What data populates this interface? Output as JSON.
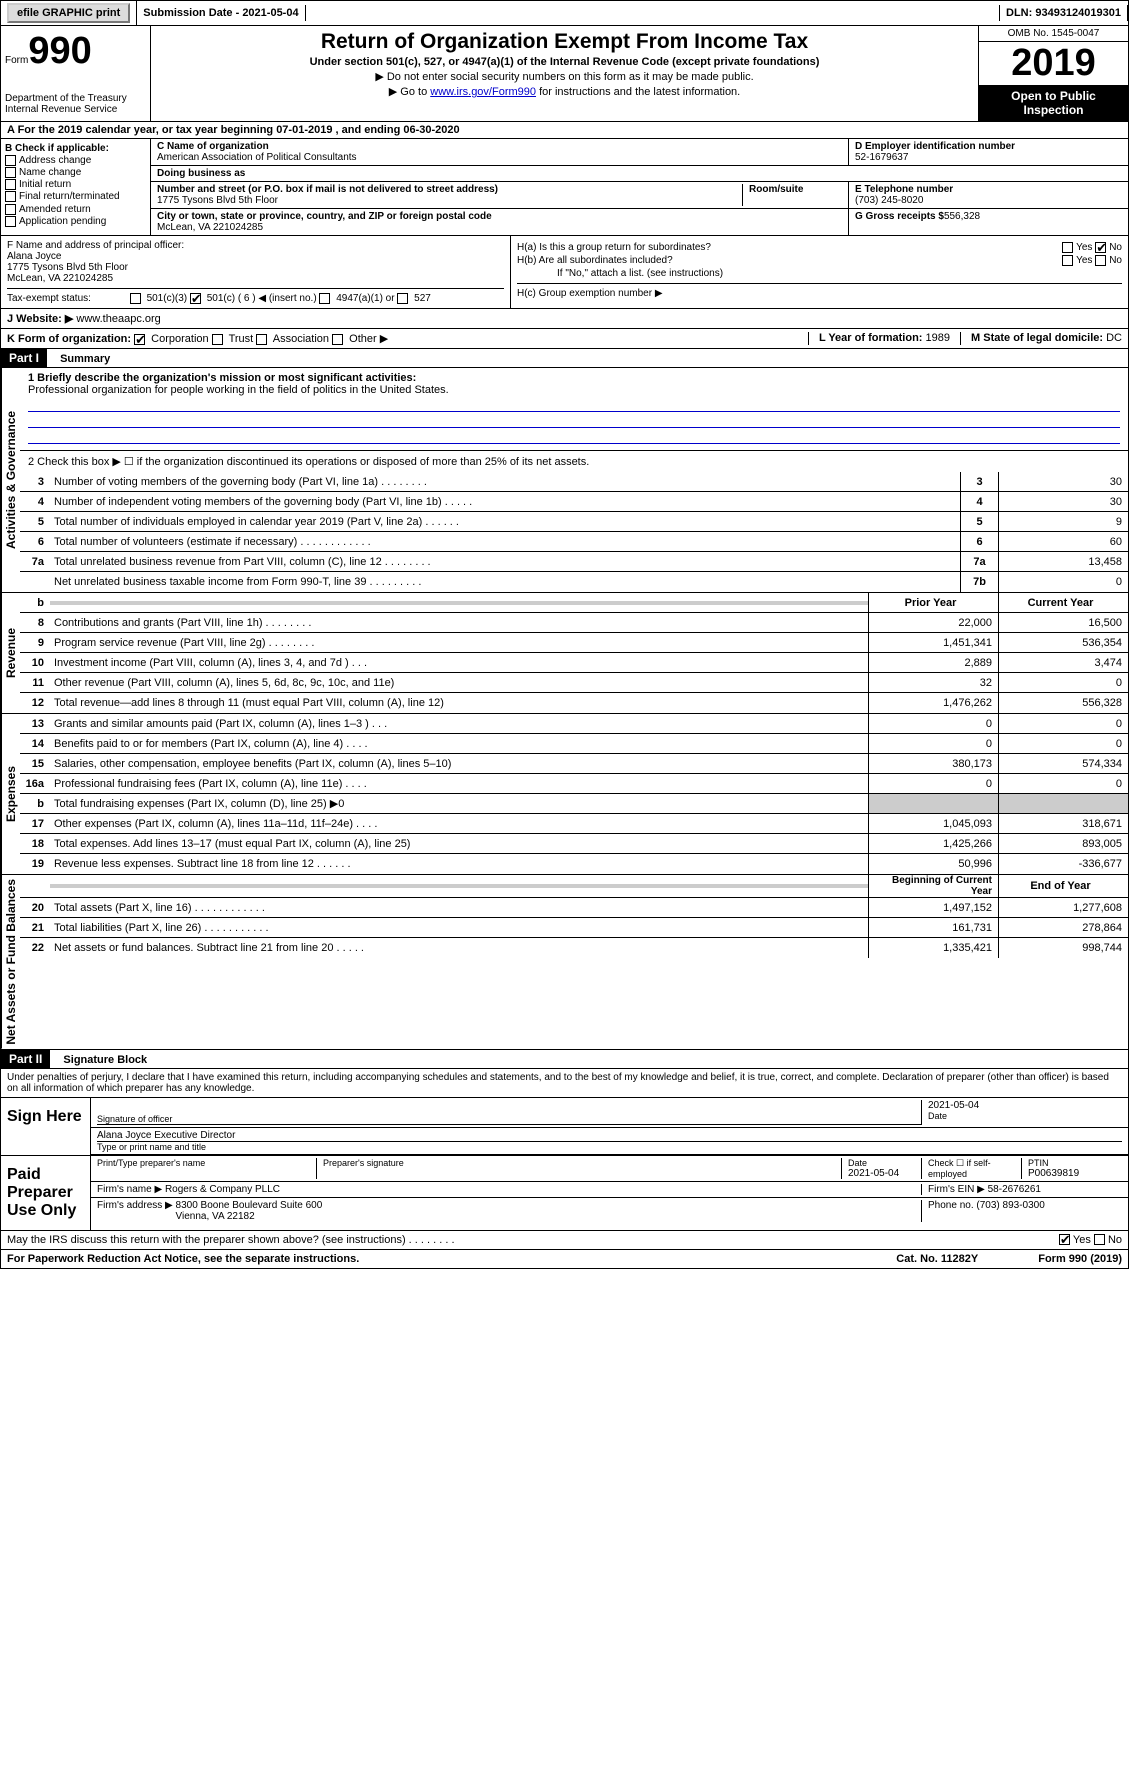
{
  "topbar": {
    "efile": "efile GRAPHIC print",
    "submission": "Submission Date - 2021-05-04",
    "dln": "DLN: 93493124019301"
  },
  "header": {
    "form_label": "Form",
    "form_num": "990",
    "dept": "Department of the Treasury\nInternal Revenue Service",
    "title": "Return of Organization Exempt From Income Tax",
    "subtitle": "Under section 501(c), 527, or 4947(a)(1) of the Internal Revenue Code (except private foundations)",
    "instr1": "▶ Do not enter social security numbers on this form as it may be made public.",
    "instr2_pre": "▶ Go to ",
    "instr2_link": "www.irs.gov/Form990",
    "instr2_post": " for instructions and the latest information.",
    "omb": "OMB No. 1545-0047",
    "year": "2019",
    "inspection": "Open to Public Inspection"
  },
  "row_a": "A For the 2019 calendar year, or tax year beginning 07-01-2019    , and ending 06-30-2020",
  "col_b": {
    "label": "B Check if applicable:",
    "items": [
      "Address change",
      "Name change",
      "Initial return",
      "Final return/terminated",
      "Amended return",
      "Application pending"
    ]
  },
  "col_c": {
    "name_label": "C Name of organization",
    "name": "American Association of Political Consultants",
    "dba_label": "Doing business as",
    "addr_label": "Number and street (or P.O. box if mail is not delivered to street address)",
    "room_label": "Room/suite",
    "addr": "1775 Tysons Blvd 5th Floor",
    "city_label": "City or town, state or province, country, and ZIP or foreign postal code",
    "city": "McLean, VA  221024285"
  },
  "col_d": {
    "ein_label": "D Employer identification number",
    "ein": "52-1679637",
    "phone_label": "E Telephone number",
    "phone": "(703) 245-8020",
    "receipts_label": "G Gross receipts $",
    "receipts": "556,328"
  },
  "col_f": {
    "label": "F  Name and address of principal officer:",
    "name": "Alana Joyce",
    "addr1": "1775 Tysons Blvd 5th Floor",
    "addr2": "McLean, VA  221024285",
    "tax_exempt": "Tax-exempt status:",
    "opts": [
      "501(c)(3)",
      "501(c) ( 6 ) ◀ (insert no.)",
      "4947(a)(1) or",
      "527"
    ]
  },
  "col_h": {
    "ha": "H(a)  Is this a group return for subordinates?",
    "hb": "H(b)  Are all subordinates included?",
    "hb_note": "If \"No,\" attach a list. (see instructions)",
    "hc": "H(c)  Group exemption number ▶"
  },
  "row_j": {
    "label": "J    Website: ▶",
    "value": "www.theaapc.org"
  },
  "row_k": {
    "label": "K Form of organization:",
    "opts": [
      "Corporation",
      "Trust",
      "Association",
      "Other ▶"
    ],
    "year_label": "L Year of formation:",
    "year": "1989",
    "state_label": "M State of legal domicile:",
    "state": "DC"
  },
  "part1": {
    "header": "Part I",
    "title": "Summary",
    "line1_label": "1  Briefly describe the organization's mission or most significant activities:",
    "line1_text": "Professional organization for people working in the field of politics in the United States.",
    "line2": "2   Check this box ▶ ☐  if the organization discontinued its operations or disposed of more than 25% of its net assets.",
    "sections": {
      "governance": "Activities & Governance",
      "revenue": "Revenue",
      "expenses": "Expenses",
      "netassets": "Net Assets or Fund Balances"
    },
    "prior_label": "Prior Year",
    "current_label": "Current Year",
    "begin_label": "Beginning of Current Year",
    "end_label": "End of Year",
    "lines_gov": [
      {
        "n": "3",
        "t": "Number of voting members of the governing body (Part VI, line 1a)  .   .   .   .   .   .   .   .",
        "b": "3",
        "v": "30"
      },
      {
        "n": "4",
        "t": "Number of independent voting members of the governing body (Part VI, line 1b)  .   .   .   .   .",
        "b": "4",
        "v": "30"
      },
      {
        "n": "5",
        "t": "Total number of individuals employed in calendar year 2019 (Part V, line 2a)  .   .   .   .   .   .",
        "b": "5",
        "v": "9"
      },
      {
        "n": "6",
        "t": "Total number of volunteers (estimate if necessary)  .   .   .   .   .   .   .   .   .   .   .   .",
        "b": "6",
        "v": "60"
      },
      {
        "n": "7a",
        "t": "Total unrelated business revenue from Part VIII, column (C), line 12  .   .   .   .   .   .   .   .",
        "b": "7a",
        "v": "13,458"
      },
      {
        "n": "",
        "t": "Net unrelated business taxable income from Form 990-T, line 39  .   .   .   .   .   .   .   .   .",
        "b": "7b",
        "v": "0"
      }
    ],
    "lines_rev": [
      {
        "n": "8",
        "t": "Contributions and grants (Part VIII, line 1h)  .   .   .   .   .   .   .   .",
        "p": "22,000",
        "c": "16,500"
      },
      {
        "n": "9",
        "t": "Program service revenue (Part VIII, line 2g)   .   .   .   .   .   .   .   .",
        "p": "1,451,341",
        "c": "536,354"
      },
      {
        "n": "10",
        "t": "Investment income (Part VIII, column (A), lines 3, 4, and 7d )   .   .   .",
        "p": "2,889",
        "c": "3,474"
      },
      {
        "n": "11",
        "t": "Other revenue (Part VIII, column (A), lines 5, 6d, 8c, 9c, 10c, and 11e)",
        "p": "32",
        "c": "0"
      },
      {
        "n": "12",
        "t": "Total revenue—add lines 8 through 11 (must equal Part VIII, column (A), line 12)",
        "p": "1,476,262",
        "c": "556,328"
      }
    ],
    "lines_exp": [
      {
        "n": "13",
        "t": "Grants and similar amounts paid (Part IX, column (A), lines 1–3 )   .   .   .",
        "p": "0",
        "c": "0"
      },
      {
        "n": "14",
        "t": "Benefits paid to or for members (Part IX, column (A), line 4)   .   .   .   .",
        "p": "0",
        "c": "0"
      },
      {
        "n": "15",
        "t": "Salaries, other compensation, employee benefits (Part IX, column (A), lines 5–10)",
        "p": "380,173",
        "c": "574,334"
      },
      {
        "n": "16a",
        "t": "Professional fundraising fees (Part IX, column (A), line 11e)   .   .   .   .",
        "p": "0",
        "c": "0"
      },
      {
        "n": "b",
        "t": "Total fundraising expenses (Part IX, column (D), line 25) ▶0",
        "p": "",
        "c": "",
        "shaded": true
      },
      {
        "n": "17",
        "t": "Other expenses (Part IX, column (A), lines 11a–11d, 11f–24e)   .   .   .   .",
        "p": "1,045,093",
        "c": "318,671"
      },
      {
        "n": "18",
        "t": "Total expenses. Add lines 13–17 (must equal Part IX, column (A), line 25)",
        "p": "1,425,266",
        "c": "893,005"
      },
      {
        "n": "19",
        "t": "Revenue less expenses. Subtract line 18 from line 12   .   .   .   .   .   .",
        "p": "50,996",
        "c": "-336,677"
      }
    ],
    "lines_net": [
      {
        "n": "20",
        "t": "Total assets (Part X, line 16)   .   .   .   .   .   .   .   .   .   .   .   .",
        "p": "1,497,152",
        "c": "1,277,608"
      },
      {
        "n": "21",
        "t": "Total liabilities (Part X, line 26)   .   .   .   .   .   .   .   .   .   .   .",
        "p": "161,731",
        "c": "278,864"
      },
      {
        "n": "22",
        "t": "Net assets or fund balances. Subtract line 21 from line 20   .   .   .   .   .",
        "p": "1,335,421",
        "c": "998,744"
      }
    ]
  },
  "part2": {
    "header": "Part II",
    "title": "Signature Block",
    "perjury": "Under penalties of perjury, I declare that I have examined this return, including accompanying schedules and statements, and to the best of my knowledge and belief, it is true, correct, and complete. Declaration of preparer (other than officer) is based on all information of which preparer has any knowledge.",
    "sign_here": "Sign Here",
    "sig_officer": "Signature of officer",
    "sig_date": "2021-05-04",
    "date_label": "Date",
    "officer_name": "Alana Joyce  Executive Director",
    "type_name": "Type or print name and title",
    "paid": "Paid Preparer Use Only",
    "prep_name_label": "Print/Type preparer's name",
    "prep_sig_label": "Preparer's signature",
    "prep_date": "2021-05-04",
    "check_self": "Check ☐ if self-employed",
    "ptin_label": "PTIN",
    "ptin": "P00639819",
    "firm_name_label": "Firm's name    ▶",
    "firm_name": "Rogers & Company PLLC",
    "firm_ein_label": "Firm's EIN ▶",
    "firm_ein": "58-2676261",
    "firm_addr_label": "Firm's address ▶",
    "firm_addr": "8300 Boone Boulevard Suite 600\nVienna, VA  22182",
    "firm_phone_label": "Phone no.",
    "firm_phone": "(703) 893-0300",
    "discuss": "May the IRS discuss this return with the preparer shown above? (see instructions)   .   .   .   .   .   .   .   ."
  },
  "footer": {
    "paperwork": "For Paperwork Reduction Act Notice, see the separate instructions.",
    "cat": "Cat. No. 11282Y",
    "form": "Form 990 (2019)"
  },
  "yesno": {
    "yes": "Yes",
    "no": "No"
  }
}
